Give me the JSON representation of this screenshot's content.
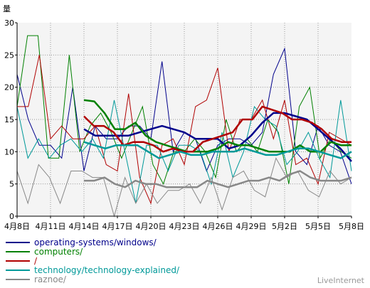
{
  "brand": "LiveInternet",
  "ylabel": "量",
  "chart_data": {
    "type": "line",
    "ylim": [
      0,
      30
    ],
    "yticks": [
      0,
      5,
      10,
      15,
      20,
      25,
      30
    ],
    "xlim": [
      0,
      30
    ],
    "grid": true,
    "legend_position": "bottom-left",
    "x_tick_labels": [
      {
        "day": 0,
        "label": "4月8日"
      },
      {
        "day": 3,
        "label": "4月11日"
      },
      {
        "day": 6,
        "label": "4月14日"
      },
      {
        "day": 9,
        "label": "4月17日"
      },
      {
        "day": 12,
        "label": "4月20日"
      },
      {
        "day": 15,
        "label": "4月23日"
      },
      {
        "day": 18,
        "label": "4月26日"
      },
      {
        "day": 21,
        "label": "4月29日"
      },
      {
        "day": 24,
        "label": "5月2日"
      },
      {
        "day": 27,
        "label": "5月5日"
      },
      {
        "day": 30,
        "label": "5月8日"
      }
    ],
    "series": [
      {
        "name": "operating-systems/windows/",
        "color": "#00008b",
        "daily": [
          22,
          15,
          11,
          11,
          9,
          20,
          7,
          14,
          12,
          12,
          14,
          14,
          12,
          24,
          10,
          13,
          12,
          7,
          11,
          12,
          12,
          11,
          13,
          22,
          26,
          10,
          8,
          14,
          11,
          10,
          5
        ],
        "avg_start": 6,
        "avg": [
          13.5,
          12.5,
          12.5,
          12.5,
          12.5,
          13,
          13.5,
          14,
          13.5,
          13,
          12,
          12,
          12,
          10.5,
          11,
          12.5,
          14.5,
          16,
          16,
          15.5,
          15,
          13.5,
          12,
          10.5,
          8.5
        ]
      },
      {
        "name": "computers/",
        "color": "#008000",
        "daily": [
          17,
          28,
          28,
          9,
          9,
          25,
          10,
          14,
          16,
          13,
          9,
          13,
          17,
          8,
          5,
          10,
          10,
          12,
          10,
          6,
          15,
          10,
          12,
          10,
          15,
          13,
          5,
          17,
          20,
          9,
          12,
          10,
          9
        ],
        "avg_start": 6,
        "avg": [
          18,
          17.8,
          16,
          13.5,
          13.5,
          14.5,
          12.5,
          11.5,
          11,
          10.5,
          10,
          10,
          10,
          10.5,
          11.5,
          11,
          11,
          10.5,
          10,
          10,
          10,
          11,
          10,
          10,
          11.5,
          11,
          11
        ]
      },
      {
        "name": "/",
        "color": "#b00000",
        "daily": [
          17,
          17,
          25,
          12,
          14,
          12,
          12,
          14,
          8,
          7,
          19,
          6,
          2,
          11,
          12,
          8,
          17,
          18,
          23,
          10,
          15,
          15,
          18,
          12,
          18,
          8,
          9,
          5,
          13,
          12,
          11
        ],
        "avg_start": 6,
        "avg": [
          15.5,
          14,
          14,
          13,
          11,
          11.5,
          11.5,
          11,
          10,
          10.5,
          10,
          10,
          11.5,
          12,
          12.5,
          13,
          15,
          15,
          17,
          16.5,
          16,
          15,
          15,
          14.5,
          13.5,
          12,
          11.5,
          11.5
        ]
      },
      {
        "name": "technology/technology-explained/",
        "color": "#009999",
        "daily": [
          17,
          9,
          12,
          9,
          11,
          12,
          10,
          12,
          9,
          18,
          10,
          2,
          11,
          11,
          7,
          11,
          11,
          10,
          5,
          13,
          6,
          10,
          17,
          15,
          14,
          8,
          10,
          13,
          9,
          6,
          18,
          7
        ],
        "avg_start": 6,
        "avg": [
          11.5,
          11,
          10.5,
          11,
          11,
          11,
          10,
          9,
          9.5,
          10,
          9.5,
          9.5,
          10,
          10,
          10,
          10.5,
          10,
          9.5,
          9.5,
          10,
          10.5,
          10.5,
          10,
          9.5,
          9,
          10
        ]
      },
      {
        "name": "raznoe/",
        "color": "#888888",
        "daily": [
          7,
          2,
          8,
          6,
          2,
          7,
          7,
          6,
          6,
          0,
          6,
          2,
          5,
          2,
          4,
          4,
          5,
          2,
          6,
          1,
          6,
          7,
          4,
          3,
          9,
          6,
          7,
          4,
          3,
          7,
          5,
          6
        ],
        "avg_start": 6,
        "avg": [
          5.5,
          5.5,
          6,
          5,
          4.5,
          5.5,
          5,
          5,
          4.5,
          4.5,
          4.5,
          4.5,
          5.5,
          5,
          4.5,
          5,
          5.5,
          5.5,
          6,
          5.5,
          6.5,
          7,
          6,
          5.5,
          5.5,
          5.5,
          6
        ]
      }
    ]
  }
}
